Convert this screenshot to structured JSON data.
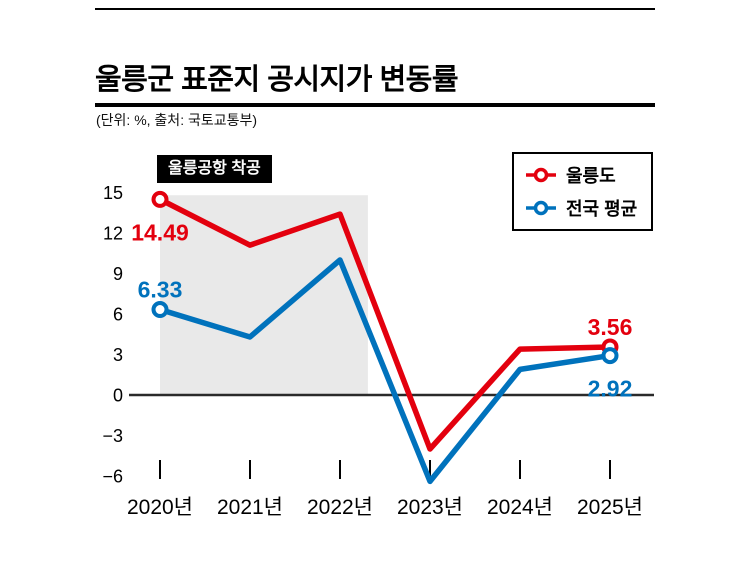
{
  "header": {
    "title": "울릉군 표준지 공시지가 변동률",
    "subtitle": "(단위: %, 출처: 국토교통부)"
  },
  "annotation": {
    "label": "울릉공항 착공"
  },
  "colors": {
    "ulleung_red": "#e3000e",
    "national_blue": "#0072bc",
    "highlight_gray": "#e9e9e9",
    "axis_black": "#000000"
  },
  "chart_data": {
    "type": "line",
    "title": "울릉군 표준지 공시지가 변동률",
    "unit": "%",
    "source": "국토교통부",
    "categories": [
      "2020년",
      "2021년",
      "2022년",
      "2023년",
      "2024년",
      "2025년"
    ],
    "series": [
      {
        "name": "울릉도",
        "color": "#e3000e",
        "values": [
          14.49,
          11.1,
          13.4,
          -4.0,
          3.4,
          3.56
        ],
        "point_labels": [
          {
            "index": 0,
            "text": "14.49",
            "position": "below"
          },
          {
            "index": 5,
            "text": "3.56",
            "position": "above"
          }
        ]
      },
      {
        "name": "전국 평균",
        "color": "#0072bc",
        "values": [
          6.33,
          4.3,
          10.0,
          -6.4,
          1.9,
          2.92
        ],
        "point_labels": [
          {
            "index": 0,
            "text": "6.33",
            "position": "above"
          },
          {
            "index": 5,
            "text": "2.92",
            "position": "below"
          }
        ]
      }
    ],
    "yticks": [
      15,
      12,
      9,
      6,
      3,
      0,
      -3,
      -6
    ],
    "ylim": [
      -6.8,
      16.2
    ],
    "grid": false,
    "zero_line": true,
    "legend_position": "top-right",
    "highlight_region": {
      "from_index": 0,
      "to_index": 2.31,
      "y_from": 0,
      "y_to": 14.8,
      "color": "#e9e9e9"
    }
  }
}
